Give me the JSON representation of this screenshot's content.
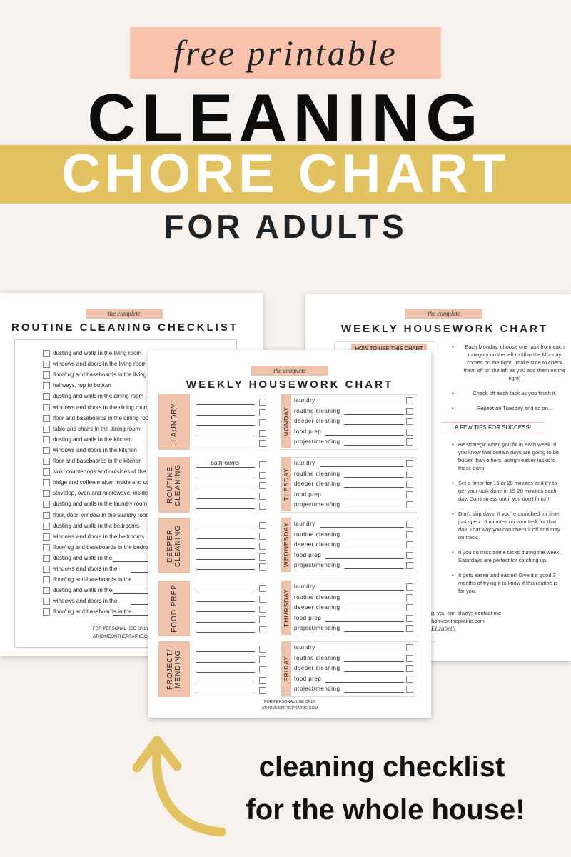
{
  "header": {
    "tag": "free printable",
    "title_line1": "CLEANING",
    "title_line2": "CHORE CHART",
    "title_line3": "FOR ADULTS"
  },
  "routine_checklist": {
    "badge": "the complete",
    "title": "ROUTINE CLEANING CHECKLIST",
    "items": [
      "dusting and walls in the living room",
      "windows and doors in the living room",
      "floor/rug and baseboards in the living room",
      "hallways, top to bottom",
      "dusting and walls in the dining room",
      "windows and doors in the dining room",
      "floor and baseboards in the dining room",
      "table and chairs in the dining room",
      "dusting and walls in the kitchen",
      "windows and doors in the kitchen",
      "floor and baseboards in the kitchen",
      "sink, countertops and outsides of the kitchen",
      "fridge and coffee maker, inside and out",
      "stovetop, oven and microwave, inside and out",
      "dusting and walls in the laundry room",
      "floor, door, window in the laundry room",
      "dusting and walls in the bedrooms",
      "windows and doors in the bedrooms",
      "floor/rug and baseboards in the bedrooms",
      "dusting and walls in the",
      "windows and doors in the",
      "floor/rug and baseboards in the",
      "dusting and walls in the",
      "windows and doors in the",
      "floor/rug and baseboards in the"
    ],
    "footer": [
      "FOR PERSONAL USE ONLY",
      "ATHOMEONTHEPRAIRIE.COM"
    ]
  },
  "instructions": {
    "badge": "the complete",
    "title": "WEEKLY HOUSEWORK CHART",
    "how_heading": "HOW TO USE THIS CHART",
    "how_steps": [
      "Each Monday, choose one task from each category on the left to fill in the Monday chores on the right. (make sure to check them off on the left as you add them on the right)",
      "Check off each task as you finish it.",
      "Repeat on Tuesday and so on..."
    ],
    "tips_heading": "A FEW TIPS FOR SUCCESS!",
    "tips": [
      "Be strategic when you fill in each week. If you know that certain days are going to be busier than others, assign easier tasks to those days.",
      "Set a timer for 15 or 20 minutes and try to get your task done in 15-20 minutes each day. Don't stress out if you don't finish!",
      "Don't skip days. If you're crunched for time, just spend 5 minutes on your task for that day. That way you can check it off and stay on track.",
      "If you do miss some tasks during the week, Saturdays are perfect for catching up.",
      "It gets easier and easier! Give it a good 3 months of trying it to know if this routine is for you."
    ],
    "closing": "ing, you can always contact me!",
    "website": "athomeontheprairie.com",
    "signature": "Elizabeth"
  },
  "weekly_chart": {
    "badge": "the complete",
    "title": "WEEKLY HOUSEWORK CHART",
    "categories": [
      "LAUNDRY",
      "ROUTINE CLEANING",
      "DEEPER CLEANING",
      "FOOD PREP",
      "PROJECT/ MENDING"
    ],
    "filled_entry": "bathrooms",
    "days": [
      "MONDAY",
      "TUESDAY",
      "WEDNESDAY",
      "THURSDAY",
      "FRIDAY"
    ],
    "tasks": [
      "laundry",
      "routine cleaning",
      "deeper cleaning",
      "food prep",
      "project/mending"
    ],
    "footer": [
      "FOR PERSONAL USE ONLY",
      "ATHOMEONTHEPRAIRIE.COM"
    ]
  },
  "caption": [
    "cleaning checklist",
    "for the whole house!"
  ]
}
